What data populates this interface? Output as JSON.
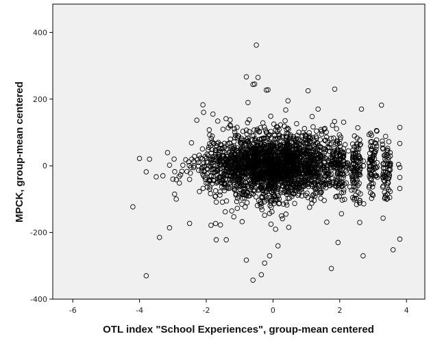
{
  "chart_data": {
    "type": "scatter",
    "title": "",
    "xlabel": "OTL index \"School Experiences\", group-mean centered",
    "ylabel": "MPCK, group-mean centered",
    "xlim": [
      -6.6,
      4.55
    ],
    "ylim": [
      -400,
      485
    ],
    "xticks": [
      -6,
      -4,
      -2,
      0,
      2,
      4
    ],
    "yticks": [
      -400,
      -200,
      0,
      200,
      400
    ],
    "x_tick_labels": [
      "-6",
      "-4",
      "-2",
      "0",
      "2",
      "4"
    ],
    "y_tick_labels": [
      "-400",
      "-200",
      "0",
      "200",
      "400"
    ],
    "grid": false,
    "legend": "none",
    "background": "#f0f0f0",
    "marker_color": "#000000",
    "points_note_outliers": [
      [
        -0.5,
        362
      ],
      [
        -0.8,
        267
      ],
      [
        -0.45,
        265
      ],
      [
        -0.55,
        245
      ],
      [
        -0.6,
        244
      ],
      [
        -0.2,
        227
      ],
      [
        -0.15,
        228
      ],
      [
        1.85,
        230
      ],
      [
        1.05,
        225
      ],
      [
        3.25,
        182
      ],
      [
        -2.1,
        183
      ],
      [
        -4.2,
        -123
      ],
      [
        -3.8,
        -330
      ],
      [
        -3.4,
        -215
      ],
      [
        -3.1,
        -186
      ],
      [
        -0.8,
        -283
      ],
      [
        -0.6,
        -343
      ],
      [
        -0.35,
        -327
      ],
      [
        -0.25,
        -292
      ],
      [
        1.75,
        -308
      ],
      [
        2.7,
        -270
      ],
      [
        3.6,
        -252
      ],
      [
        3.8,
        -220
      ],
      [
        3.3,
        -157
      ],
      [
        2.6,
        -170
      ],
      [
        -2.5,
        -173
      ],
      [
        -1.7,
        -222
      ],
      [
        -1.4,
        -222
      ],
      [
        -0.1,
        -270
      ],
      [
        0.15,
        -240
      ],
      [
        0.45,
        195
      ],
      [
        -0.75,
        190
      ],
      [
        1.35,
        170
      ],
      [
        2.65,
        170
      ],
      [
        -1.8,
        155
      ],
      [
        3.8,
        115
      ],
      [
        3.8,
        67
      ],
      [
        3.8,
        -5
      ],
      [
        3.8,
        -35
      ],
      [
        3.8,
        -68
      ],
      [
        -4.0,
        22
      ],
      [
        -3.7,
        20
      ],
      [
        -3.8,
        -18
      ],
      [
        -3.5,
        -33
      ],
      [
        -3.3,
        -30
      ],
      [
        -3.1,
        2
      ],
      [
        -3.0,
        -40
      ],
      [
        -2.9,
        -100
      ],
      [
        -2.95,
        -85
      ]
    ]
  }
}
